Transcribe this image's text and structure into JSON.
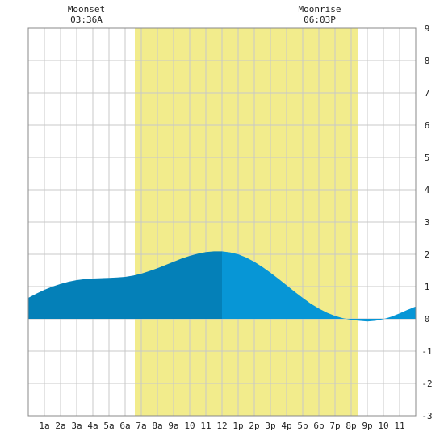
{
  "chart_data": {
    "type": "area",
    "title": "",
    "xlabel": "",
    "ylabel": "",
    "xlim": [
      0,
      24
    ],
    "ylim": [
      -3,
      9
    ],
    "y_ticks": [
      -3,
      -2,
      -1,
      0,
      1,
      2,
      3,
      4,
      5,
      6,
      7,
      8,
      9
    ],
    "x_ticks": [
      {
        "x": 1,
        "label": "1a"
      },
      {
        "x": 2,
        "label": "2a"
      },
      {
        "x": 3,
        "label": "3a"
      },
      {
        "x": 4,
        "label": "4a"
      },
      {
        "x": 5,
        "label": "5a"
      },
      {
        "x": 6,
        "label": "6a"
      },
      {
        "x": 7,
        "label": "7a"
      },
      {
        "x": 8,
        "label": "8a"
      },
      {
        "x": 9,
        "label": "9a"
      },
      {
        "x": 10,
        "label": "10"
      },
      {
        "x": 11,
        "label": "11"
      },
      {
        "x": 12,
        "label": "12"
      },
      {
        "x": 13,
        "label": "1p"
      },
      {
        "x": 14,
        "label": "2p"
      },
      {
        "x": 15,
        "label": "3p"
      },
      {
        "x": 16,
        "label": "4p"
      },
      {
        "x": 17,
        "label": "5p"
      },
      {
        "x": 18,
        "label": "6p"
      },
      {
        "x": 19,
        "label": "7p"
      },
      {
        "x": 20,
        "label": "8p"
      },
      {
        "x": 21,
        "label": "9p"
      },
      {
        "x": 22,
        "label": "10"
      },
      {
        "x": 23,
        "label": "11"
      }
    ],
    "grid": true,
    "daylight": {
      "start": 6.6,
      "end": 20.45
    },
    "now": 12,
    "series": [
      {
        "values": [
          {
            "x": 0,
            "y": 0.65
          },
          {
            "x": 0.5,
            "y": 0.78
          },
          {
            "x": 1,
            "y": 0.9
          },
          {
            "x": 1.5,
            "y": 1.0
          },
          {
            "x": 2,
            "y": 1.08
          },
          {
            "x": 2.5,
            "y": 1.15
          },
          {
            "x": 3,
            "y": 1.2
          },
          {
            "x": 3.5,
            "y": 1.23
          },
          {
            "x": 4,
            "y": 1.25
          },
          {
            "x": 4.5,
            "y": 1.26
          },
          {
            "x": 5,
            "y": 1.27
          },
          {
            "x": 5.5,
            "y": 1.28
          },
          {
            "x": 6,
            "y": 1.3
          },
          {
            "x": 6.5,
            "y": 1.34
          },
          {
            "x": 7,
            "y": 1.4
          },
          {
            "x": 7.5,
            "y": 1.48
          },
          {
            "x": 8,
            "y": 1.57
          },
          {
            "x": 8.5,
            "y": 1.67
          },
          {
            "x": 9,
            "y": 1.77
          },
          {
            "x": 9.5,
            "y": 1.87
          },
          {
            "x": 10,
            "y": 1.95
          },
          {
            "x": 10.5,
            "y": 2.02
          },
          {
            "x": 11,
            "y": 2.07
          },
          {
            "x": 11.5,
            "y": 2.09
          },
          {
            "x": 12,
            "y": 2.09
          },
          {
            "x": 12.5,
            "y": 2.06
          },
          {
            "x": 13,
            "y": 2.0
          },
          {
            "x": 13.5,
            "y": 1.9
          },
          {
            "x": 14,
            "y": 1.77
          },
          {
            "x": 14.5,
            "y": 1.61
          },
          {
            "x": 15,
            "y": 1.43
          },
          {
            "x": 15.5,
            "y": 1.24
          },
          {
            "x": 16,
            "y": 1.04
          },
          {
            "x": 16.5,
            "y": 0.84
          },
          {
            "x": 17,
            "y": 0.65
          },
          {
            "x": 17.5,
            "y": 0.47
          },
          {
            "x": 18,
            "y": 0.32
          },
          {
            "x": 18.5,
            "y": 0.19
          },
          {
            "x": 19,
            "y": 0.09
          },
          {
            "x": 19.5,
            "y": 0.02
          },
          {
            "x": 20,
            "y": -0.03
          },
          {
            "x": 20.5,
            "y": -0.06
          },
          {
            "x": 21,
            "y": -0.08
          },
          {
            "x": 21.5,
            "y": -0.06
          },
          {
            "x": 22,
            "y": -0.01
          },
          {
            "x": 22.5,
            "y": 0.07
          },
          {
            "x": 23,
            "y": 0.17
          },
          {
            "x": 23.5,
            "y": 0.28
          },
          {
            "x": 24,
            "y": 0.38
          }
        ],
        "color_before_now": "#0480b8",
        "color_after_now": "#0796d6"
      }
    ],
    "annotations": [
      {
        "x": 3.6,
        "label": "Moonset",
        "time": "03:36A"
      },
      {
        "x": 18.05,
        "label": "Moonrise",
        "time": "06:03P"
      }
    ],
    "colors": {
      "daylight": "#f2ec8c",
      "grid": "#c8c8c8",
      "frame": "#888888"
    }
  }
}
